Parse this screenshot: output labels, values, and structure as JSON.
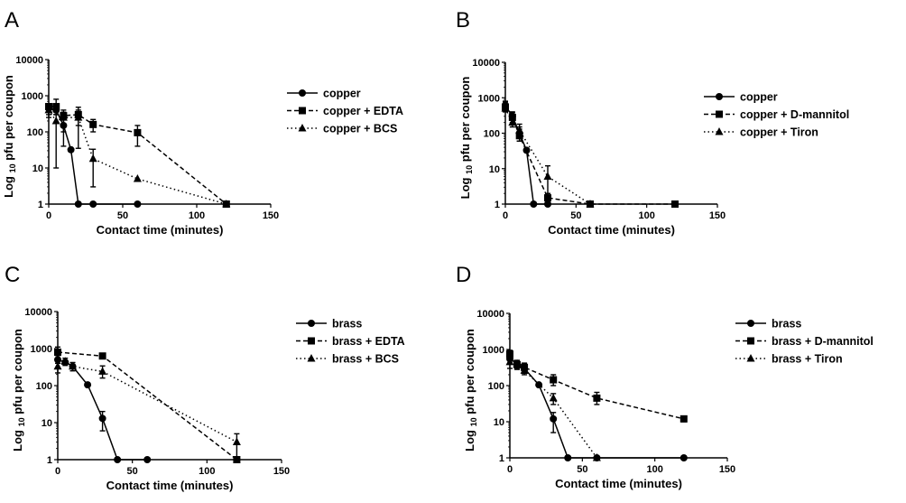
{
  "chart_data": [
    {
      "panel": "A",
      "type": "line",
      "xlabel": "Contact time (minutes)",
      "ylabel": {
        "prefix": "Log",
        "sub": "10",
        "suffix": "pfu per coupon"
      },
      "xlim": [
        0,
        150
      ],
      "ylim": [
        1,
        10000
      ],
      "yscale": "log",
      "xticks": [
        "0",
        "50",
        "100",
        "150"
      ],
      "yticks": [
        "1",
        "10",
        "100",
        "1000",
        "10000"
      ],
      "legend": "right",
      "grid": false,
      "series": [
        {
          "name": "copper",
          "marker": "circle",
          "line": "solid",
          "x": [
            0,
            5,
            10,
            15,
            20,
            30,
            60
          ],
          "y": [
            450,
            400,
            150,
            32,
            1,
            1,
            1
          ],
          "err": [
            [
              350,
              600
            ],
            [
              300,
              500
            ],
            [
              100,
              250
            ],
            null,
            null,
            null,
            null
          ]
        },
        {
          "name": "copper + EDTA",
          "marker": "square",
          "line": "dashed",
          "x": [
            0,
            5,
            10,
            20,
            30,
            60,
            120
          ],
          "y": [
            500,
            500,
            280,
            300,
            160,
            95,
            1
          ],
          "err": [
            [
              300,
              600
            ],
            [
              300,
              800
            ],
            [
              150,
              400
            ],
            [
              35,
              480
            ],
            [
              100,
              220
            ],
            [
              40,
              150
            ],
            null
          ]
        },
        {
          "name": "copper + BCS",
          "marker": "triangle",
          "line": "dotted",
          "x": [
            0,
            5,
            10,
            20,
            30,
            60,
            120
          ],
          "y": [
            400,
            200,
            250,
            250,
            18,
            5,
            1
          ],
          "err": [
            [
              250,
              550
            ],
            [
              10,
              400
            ],
            [
              40,
              350
            ],
            [
              150,
              400
            ],
            [
              3,
              33
            ],
            null,
            null
          ]
        }
      ]
    },
    {
      "panel": "B",
      "type": "line",
      "xlabel": "Contact time (minutes)",
      "ylabel": {
        "prefix": "Log",
        "sub": "10",
        "suffix": "pfu per coupon"
      },
      "xlim": [
        0,
        150
      ],
      "ylim": [
        1,
        10000
      ],
      "yscale": "log",
      "xticks": [
        "0",
        "50",
        "100",
        "150"
      ],
      "yticks": [
        "1",
        "10",
        "100",
        "1000",
        "10000"
      ],
      "legend": "right",
      "grid": false,
      "series": [
        {
          "name": "copper",
          "marker": "circle",
          "line": "solid",
          "x": [
            0,
            5,
            10,
            15,
            20,
            30
          ],
          "y": [
            600,
            300,
            100,
            33,
            1,
            1
          ],
          "err": [
            [
              450,
              800
            ],
            [
              200,
              400
            ],
            [
              60,
              150
            ],
            null,
            null,
            null
          ]
        },
        {
          "name": "copper + D-mannitol",
          "marker": "square",
          "line": "dashed",
          "x": [
            0,
            5,
            10,
            30,
            60,
            120
          ],
          "y": [
            550,
            280,
            85,
            1.5,
            1,
            1
          ],
          "err": [
            [
              400,
              750
            ],
            [
              180,
              380
            ],
            [
              60,
              130
            ],
            [
              1,
              2
            ],
            null,
            null
          ]
        },
        {
          "name": "copper + Tiron",
          "marker": "triangle",
          "line": "dotted",
          "x": [
            0,
            5,
            10,
            30,
            60
          ],
          "y": [
            500,
            200,
            120,
            6,
            1
          ],
          "err": [
            [
              400,
              650
            ],
            [
              150,
              300
            ],
            [
              80,
              180
            ],
            [
              2,
              12
            ],
            null
          ]
        }
      ]
    },
    {
      "panel": "C",
      "type": "line",
      "xlabel": "Contact time (minutes)",
      "ylabel": {
        "prefix": "Log",
        "sub": "10",
        "suffix": "pfu per coupon"
      },
      "xlim": [
        0,
        150
      ],
      "ylim": [
        1,
        10000
      ],
      "yscale": "log",
      "xticks": [
        "0",
        "50",
        "100",
        "150"
      ],
      "yticks": [
        "1",
        "10",
        "100",
        "1000",
        "10000"
      ],
      "legend": "right",
      "grid": false,
      "series": [
        {
          "name": "brass",
          "marker": "circle",
          "line": "solid",
          "x": [
            0,
            5,
            10,
            20,
            30,
            40,
            60
          ],
          "y": [
            500,
            430,
            330,
            105,
            13,
            1,
            1
          ],
          "err": [
            [
              400,
              650
            ],
            [
              350,
              550
            ],
            [
              250,
              420
            ],
            null,
            [
              6,
              20
            ],
            null,
            null
          ]
        },
        {
          "name": "brass + EDTA",
          "marker": "square",
          "line": "dashed",
          "x": [
            0,
            30,
            120
          ],
          "y": [
            800,
            630,
            1
          ],
          "err": [
            [
              550,
              1100
            ],
            null,
            null
          ]
        },
        {
          "name": "brass + BCS",
          "marker": "triangle",
          "line": "dotted",
          "x": [
            0,
            5,
            10,
            30,
            120
          ],
          "y": [
            330,
            450,
            330,
            240,
            3
          ],
          "err": [
            [
              220,
              450
            ],
            null,
            null,
            [
              160,
              340
            ],
            [
              1,
              5
            ]
          ]
        }
      ]
    },
    {
      "panel": "D",
      "type": "line",
      "xlabel": "Contact time (minutes)",
      "ylabel": {
        "prefix": "Log",
        "sub": "10",
        "suffix": "pfu per coupon"
      },
      "xlim": [
        0,
        150
      ],
      "ylim": [
        1,
        10000
      ],
      "yscale": "log",
      "xticks": [
        "0",
        "50",
        "100",
        "150"
      ],
      "yticks": [
        "1",
        "10",
        "100",
        "1000",
        "10000"
      ],
      "legend": "right",
      "grid": false,
      "series": [
        {
          "name": "brass",
          "marker": "circle",
          "line": "solid",
          "x": [
            0,
            5,
            10,
            20,
            30,
            40,
            60,
            120
          ],
          "y": [
            550,
            400,
            300,
            105,
            12,
            1,
            1,
            1
          ],
          "err": [
            [
              400,
              700
            ],
            [
              300,
              500
            ],
            [
              220,
              400
            ],
            null,
            [
              5,
              18
            ],
            null,
            null,
            null
          ]
        },
        {
          "name": "brass + D-mannitol",
          "marker": "square",
          "line": "dashed",
          "x": [
            0,
            5,
            10,
            30,
            60,
            120
          ],
          "y": [
            750,
            380,
            320,
            145,
            45,
            12
          ],
          "err": [
            [
              550,
              950
            ],
            [
              280,
              480
            ],
            [
              240,
              420
            ],
            [
              100,
              200
            ],
            [
              30,
              65
            ],
            [
              10,
              14
            ]
          ]
        },
        {
          "name": "brass + Tiron",
          "marker": "triangle",
          "line": "dotted",
          "x": [
            0,
            5,
            10,
            30,
            60
          ],
          "y": [
            450,
            400,
            260,
            45,
            1
          ],
          "err": [
            [
              300,
              550
            ],
            [
              320,
              480
            ],
            [
              200,
              330
            ],
            [
              30,
              60
            ],
            null
          ]
        }
      ]
    }
  ]
}
